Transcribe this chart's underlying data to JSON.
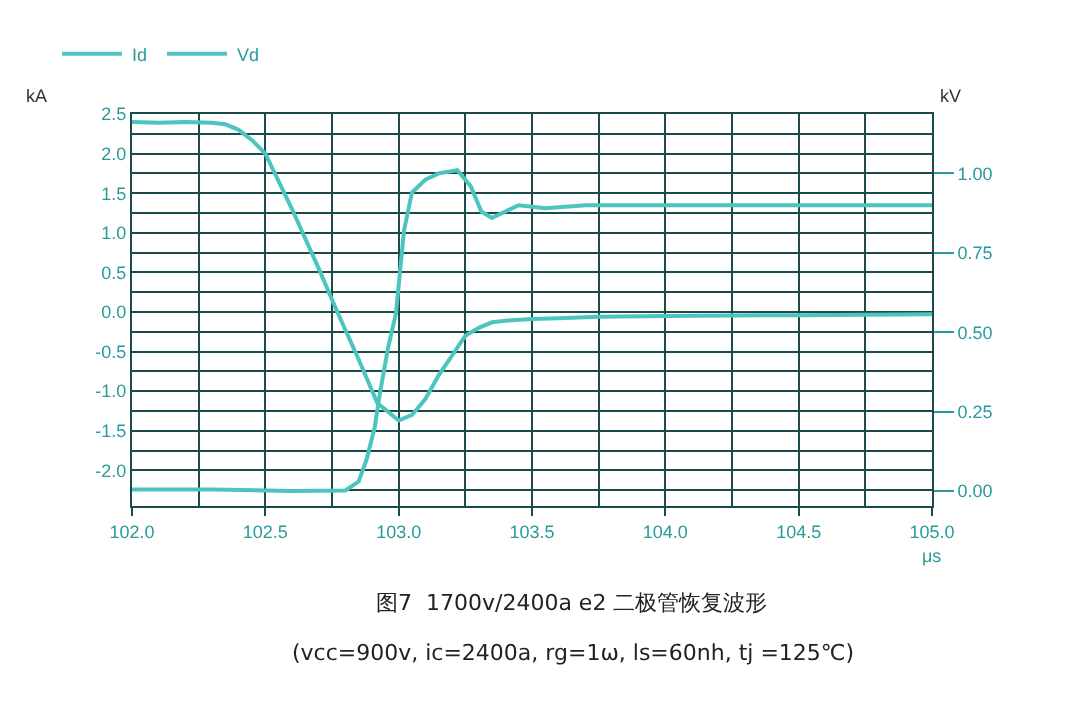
{
  "chart_data": {
    "type": "line",
    "title": "图7  1700v/2400a e2 二极管恢复波形",
    "subtitle": "(vcc=900v, ic=2400a, rg=1ω, ls=60nh, tj =125℃)",
    "xlabel": "μs",
    "ylabel": "kA",
    "y2label": "kV",
    "xlim": [
      102.0,
      105.0
    ],
    "xticks": [
      {
        "value": 102,
        "label": "102.0"
      },
      102.5,
      {
        "value": 103,
        "label": "103.0"
      },
      103.5,
      {
        "value": 104,
        "label": "104.0"
      },
      104.5,
      {
        "value": 105,
        "label": "105.0"
      }
    ],
    "ylim": [
      -2.45,
      2.5
    ],
    "yticks": [
      {
        "value": -2,
        "label": "-2.0"
      },
      -1.5,
      {
        "value": -1,
        "label": "-1.0"
      },
      -0.5,
      {
        "value": 0,
        "label": "0.0"
      },
      0.5,
      {
        "value": 1,
        "label": "1.0"
      },
      1.5,
      {
        "value": 2,
        "label": "2.0"
      },
      2.5
    ],
    "y2lim": [
      -0.047,
      1.187
    ],
    "y2ticks": [
      {
        "value": 0,
        "label": "0.00"
      },
      0.25,
      {
        "value": 0.5,
        "label": "0.50"
      },
      0.75,
      {
        "value": 1,
        "label": "1.00"
      }
    ],
    "grid": true,
    "legend": "top left",
    "marker": "none",
    "line_style": "solid",
    "series": [
      {
        "name": "Id",
        "color": "#4cc4c0",
        "x": [
          102.0,
          102.1,
          102.2,
          102.3,
          102.35,
          102.4,
          102.45,
          102.5,
          102.6,
          102.7,
          102.77,
          102.85,
          102.92,
          103.0,
          103.05,
          103.1,
          103.15,
          103.2,
          103.25,
          103.3,
          103.35,
          103.4,
          103.5,
          103.6,
          103.75,
          104.0,
          104.5,
          105.0
        ],
        "values": [
          2.4,
          2.39,
          2.4,
          2.39,
          2.37,
          2.3,
          2.17,
          2.0,
          1.3,
          0.55,
          0.0,
          -0.6,
          -1.15,
          -1.37,
          -1.3,
          -1.1,
          -0.8,
          -0.55,
          -0.3,
          -0.2,
          -0.13,
          -0.11,
          -0.09,
          -0.08,
          -0.06,
          -0.05,
          -0.04,
          -0.03
        ]
      },
      {
        "name": "Vd",
        "color": "#4cc4c0",
        "axis": "y2",
        "x": [
          102.0,
          102.3,
          102.6,
          102.8,
          102.85,
          102.88,
          102.91,
          102.93,
          102.96,
          102.99,
          103.02,
          103.05,
          103.1,
          103.15,
          103.22,
          103.27,
          103.31,
          103.35,
          103.4,
          103.45,
          103.55,
          103.7,
          104.0,
          104.5,
          105.0
        ],
        "values": [
          0.005,
          0.005,
          0.0,
          0.002,
          0.03,
          0.1,
          0.2,
          0.31,
          0.45,
          0.56,
          0.82,
          0.94,
          0.98,
          1.0,
          1.01,
          0.96,
          0.88,
          0.86,
          0.88,
          0.9,
          0.89,
          0.9,
          0.9,
          0.9,
          0.9
        ]
      }
    ]
  }
}
